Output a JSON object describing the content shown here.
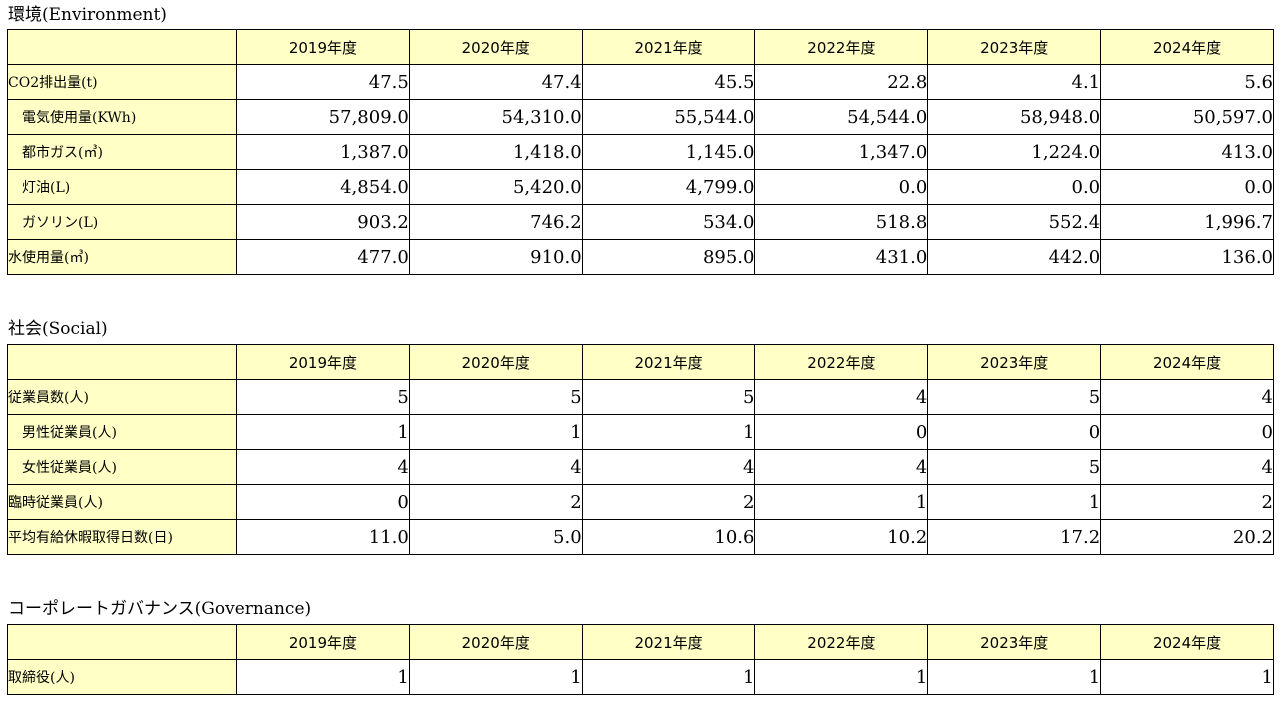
{
  "years": [
    "2019年度",
    "2020年度",
    "2021年度",
    "2022年度",
    "2023年度",
    "2024年度"
  ],
  "environment": {
    "title": "環境(Environment)",
    "rows": [
      {
        "label": "CO2排出量(t)",
        "indent": false,
        "values": [
          "47.5",
          "47.4",
          "45.5",
          "22.8",
          "4.1",
          "5.6"
        ]
      },
      {
        "label": "電気使用量(KWh)",
        "indent": true,
        "values": [
          "57,809.0",
          "54,310.0",
          "55,544.0",
          "54,544.0",
          "58,948.0",
          "50,597.0"
        ]
      },
      {
        "label": "都市ガス(㎥)",
        "indent": true,
        "values": [
          "1,387.0",
          "1,418.0",
          "1,145.0",
          "1,347.0",
          "1,224.0",
          "413.0"
        ]
      },
      {
        "label": "灯油(L)",
        "indent": true,
        "values": [
          "4,854.0",
          "5,420.0",
          "4,799.0",
          "0.0",
          "0.0",
          "0.0"
        ]
      },
      {
        "label": "ガソリン(L)",
        "indent": true,
        "values": [
          "903.2",
          "746.2",
          "534.0",
          "518.8",
          "552.4",
          "1,996.7"
        ]
      },
      {
        "label": "水使用量(㎥)",
        "indent": false,
        "values": [
          "477.0",
          "910.0",
          "895.0",
          "431.0",
          "442.0",
          "136.0"
        ]
      }
    ]
  },
  "social": {
    "title": "社会(Social)",
    "rows": [
      {
        "label": "従業員数(人)",
        "indent": false,
        "values": [
          "5",
          "5",
          "5",
          "4",
          "5",
          "4"
        ]
      },
      {
        "label": "男性従業員(人)",
        "indent": true,
        "values": [
          "1",
          "1",
          "1",
          "0",
          "0",
          "0"
        ]
      },
      {
        "label": "女性従業員(人)",
        "indent": true,
        "values": [
          "4",
          "4",
          "4",
          "4",
          "5",
          "4"
        ]
      },
      {
        "label": "臨時従業員(人)",
        "indent": false,
        "values": [
          "0",
          "2",
          "2",
          "1",
          "1",
          "2"
        ]
      },
      {
        "label": "平均有給休暇取得日数(日)",
        "indent": false,
        "values": [
          "11.0",
          "5.0",
          "10.6",
          "10.2",
          "17.2",
          "20.2"
        ]
      }
    ]
  },
  "governance": {
    "title": "コーポレートガバナンス(Governance)",
    "rows": [
      {
        "label": "取締役(人)",
        "indent": false,
        "values": [
          "1",
          "1",
          "1",
          "1",
          "1",
          "1"
        ]
      }
    ]
  }
}
